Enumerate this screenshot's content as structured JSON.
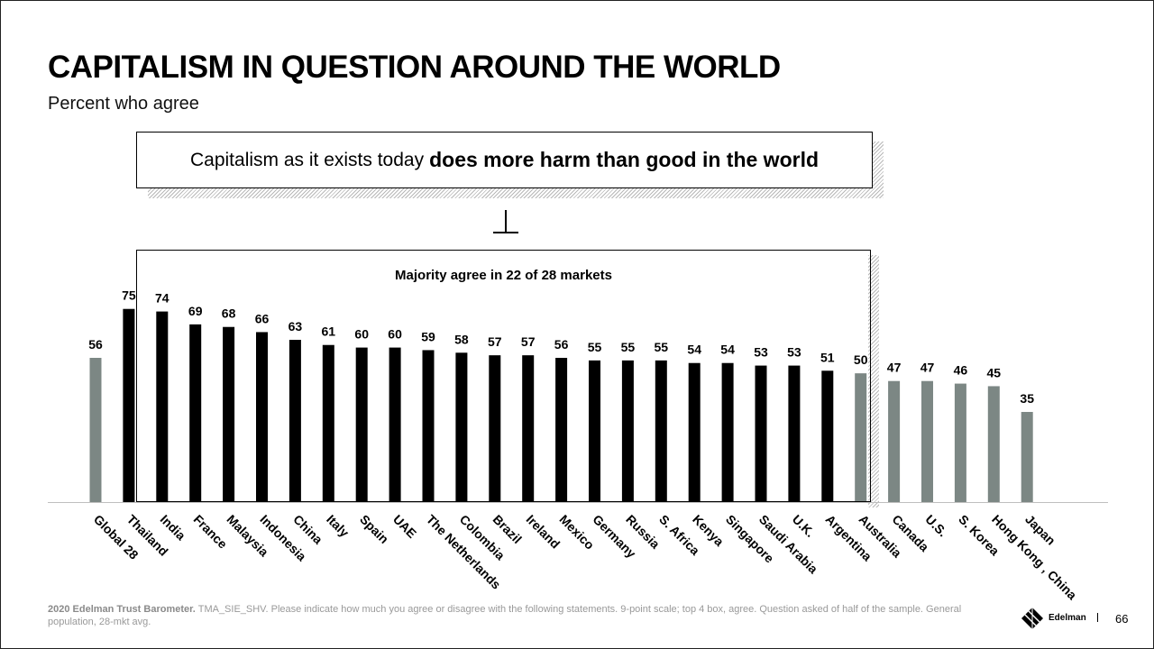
{
  "slide": {
    "title": "CAPITALISM IN QUESTION AROUND THE WORLD",
    "subtitle": "Percent who agree",
    "statement_normal": "Capitalism as it exists today",
    "statement_bold": "does more harm than good in the world",
    "majority_label": "Majority agree in 22 of 28 markets",
    "footer_bold": "2020 Edelman Trust Barometer.",
    "footer_text": "TMA_SIE_SHV. Please indicate how much you agree or disagree with the following statements. 9-point scale; top 4 box, agree. Question asked of half of the sample. General population, 28-mkt avg.",
    "logo_text": "Edelman",
    "page_number": "66"
  },
  "colors": {
    "majority": "#000000",
    "other": "#7c8784",
    "axis": "#bfbfbf"
  },
  "chart_data": {
    "type": "bar",
    "title": "Capitalism as it exists today does more harm than good in the world",
    "xlabel": "",
    "ylabel": "Percent who agree",
    "ylim": [
      0,
      100
    ],
    "grid": false,
    "categories": [
      "Global 28",
      "Thailand",
      "India",
      "France",
      "Malaysia",
      "Indonesia",
      "China",
      "Italy",
      "Spain",
      "UAE",
      "The Netherlands",
      "Colombia",
      "Brazil",
      "Ireland",
      "Mexico",
      "Germany",
      "Russia",
      "S. Africa",
      "Kenya",
      "Singapore",
      "Saudi Arabia",
      "U.K.",
      "Argentina",
      "Australia",
      "Canada",
      "U.S.",
      "S. Korea",
      "Hong Kong , China",
      "Japan"
    ],
    "values": [
      56,
      75,
      74,
      69,
      68,
      66,
      63,
      61,
      60,
      60,
      59,
      58,
      57,
      57,
      56,
      55,
      55,
      55,
      54,
      54,
      53,
      53,
      51,
      50,
      47,
      47,
      46,
      45,
      35
    ],
    "group": [
      "average",
      "majority",
      "majority",
      "majority",
      "majority",
      "majority",
      "majority",
      "majority",
      "majority",
      "majority",
      "majority",
      "majority",
      "majority",
      "majority",
      "majority",
      "majority",
      "majority",
      "majority",
      "majority",
      "majority",
      "majority",
      "majority",
      "majority",
      "other",
      "other",
      "other",
      "other",
      "other",
      "other"
    ]
  }
}
